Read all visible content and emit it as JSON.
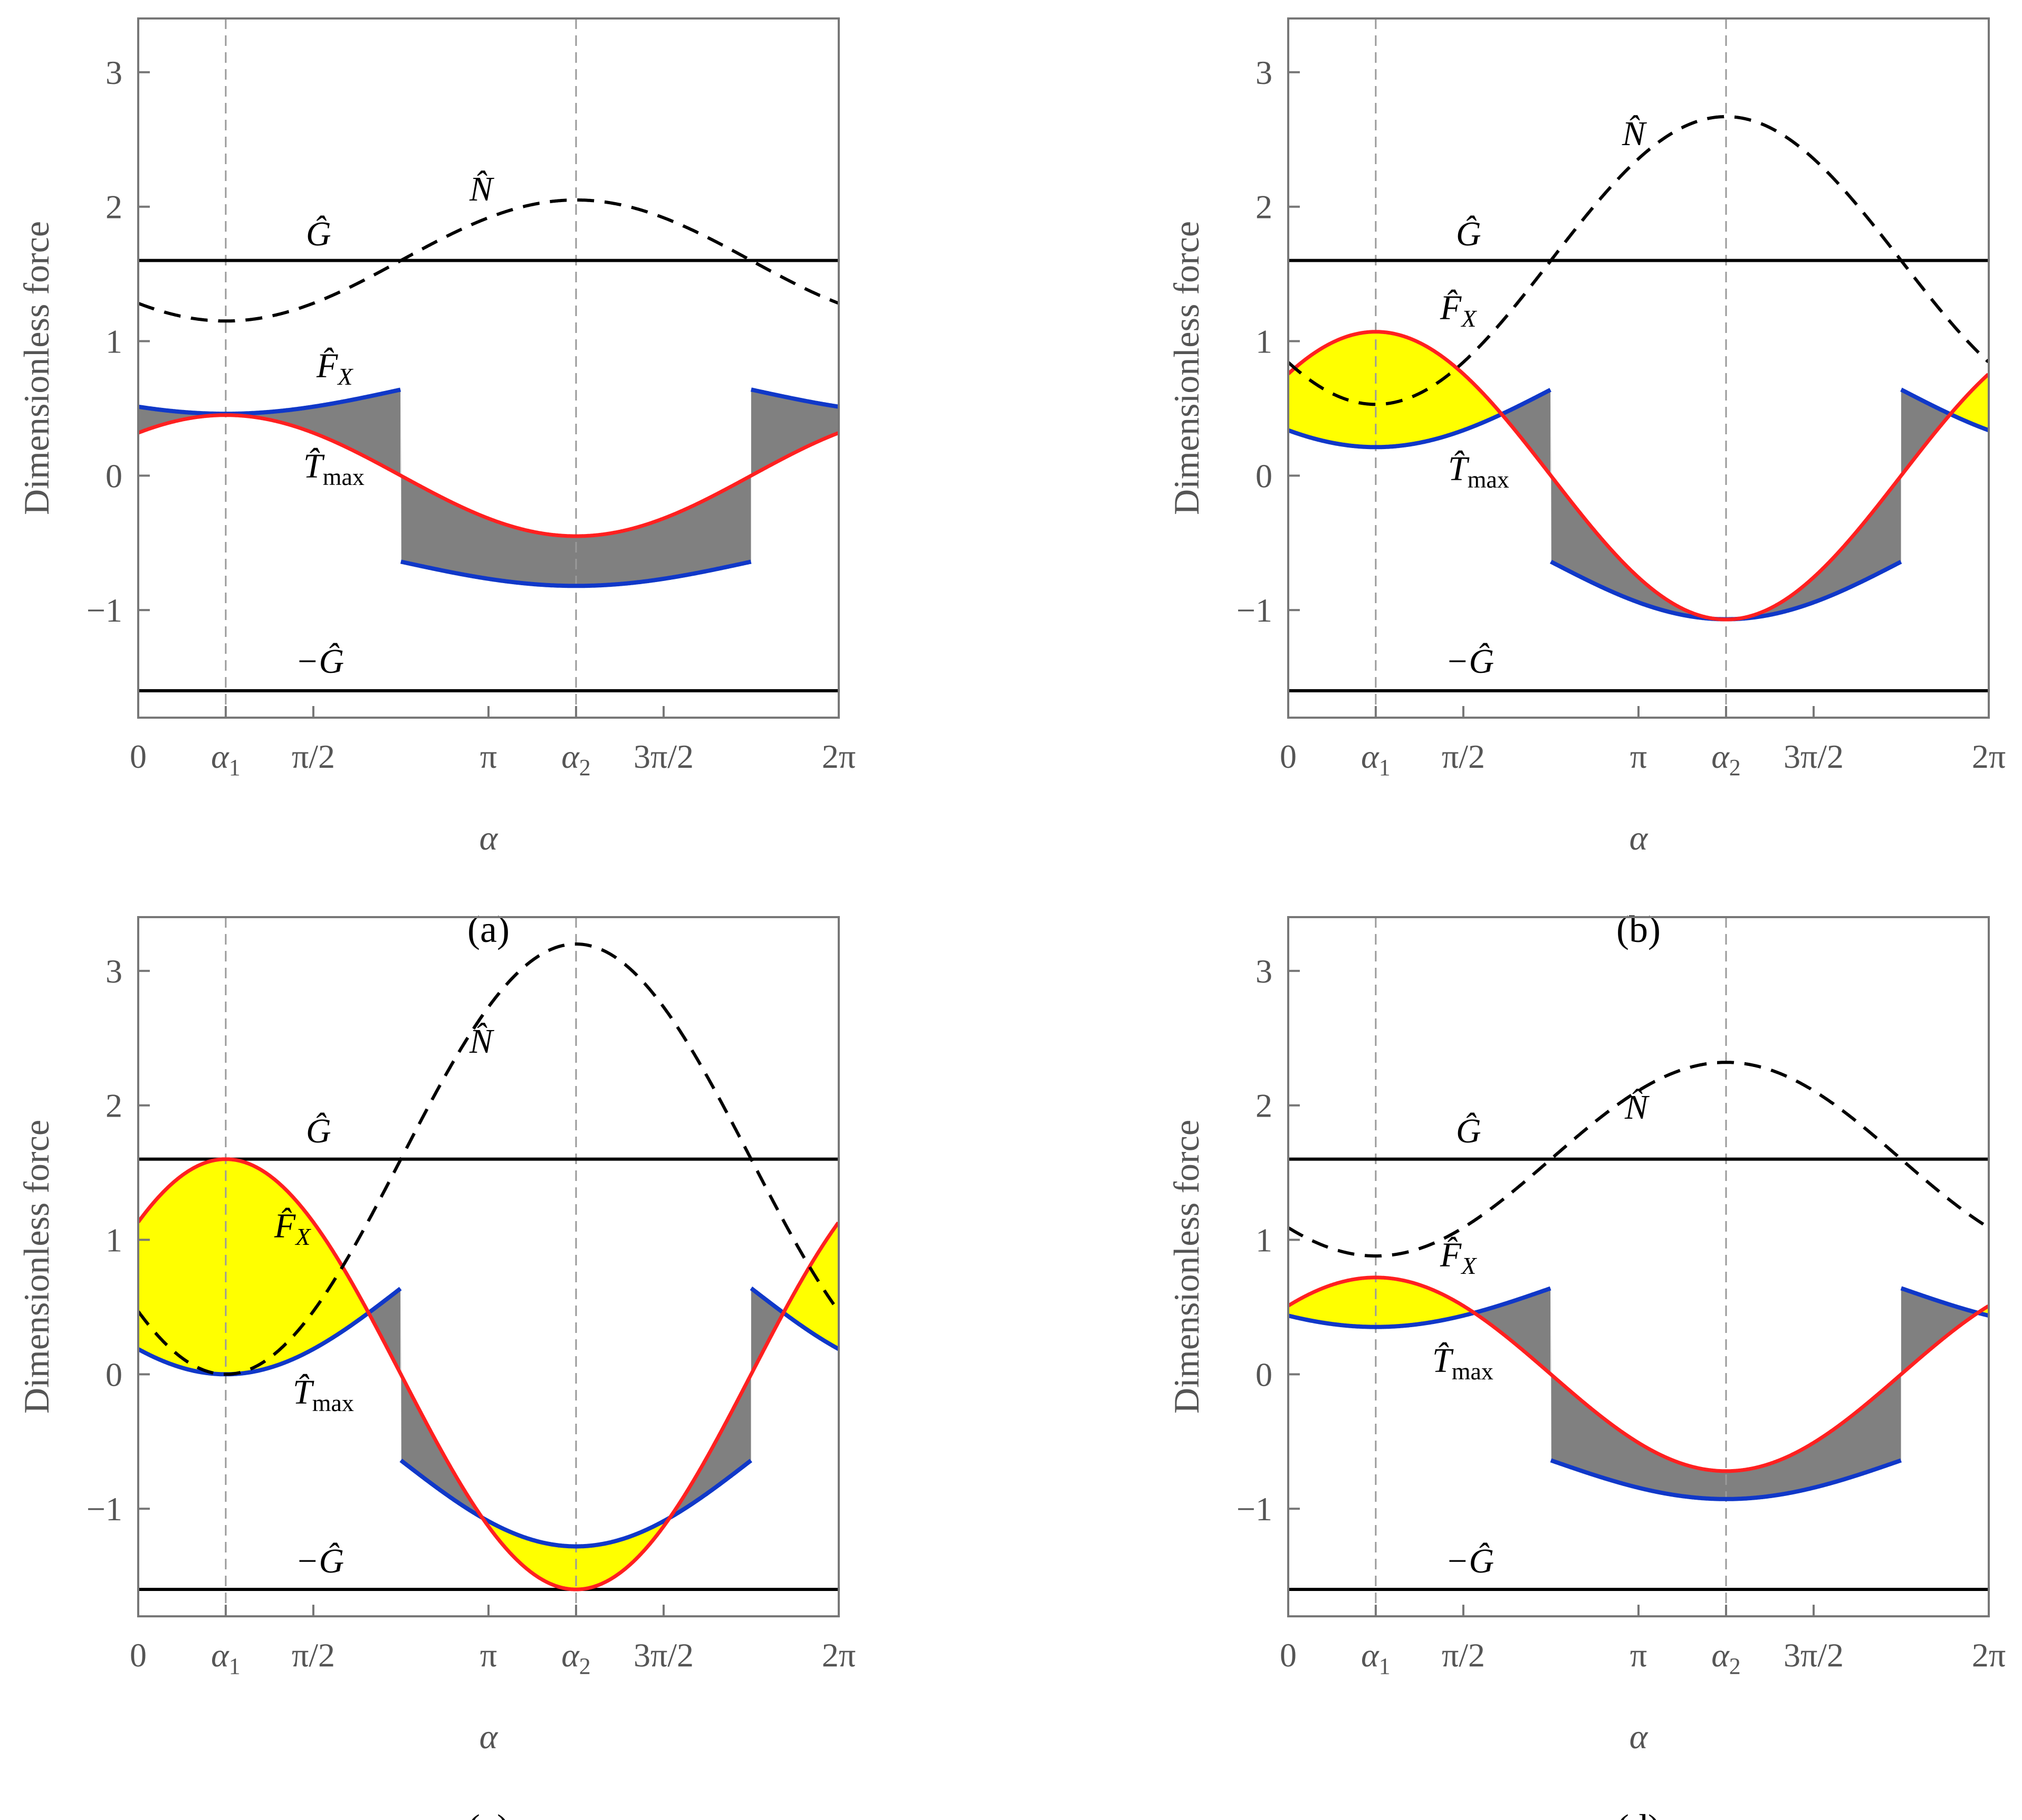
{
  "figure": {
    "panel_captions": [
      "(a)",
      "(b)",
      "(c)",
      "(d)"
    ]
  },
  "colors": {
    "N": "#000000",
    "G": "#000000",
    "FX": "#ff2020",
    "Tmax": "#1038c8",
    "fill_slip": "#808080",
    "fill_lift": "#ffff00",
    "guide": "#9a9a9a",
    "frame": "#777777",
    "tick_text": "#555555"
  },
  "chart_data": [
    {
      "type": "line",
      "panel": "(a)",
      "ylabel": "Dimensionless force",
      "xlabel": "α",
      "xlim": [
        0,
        6.2832
      ],
      "ylim": [
        -1.8,
        3.4
      ],
      "x_ticks": [
        "0",
        "α1",
        "π/2",
        "π",
        "α2",
        "3π/2",
        "2π"
      ],
      "y_ticks": [
        "−1",
        "0",
        "1",
        "2",
        "3"
      ],
      "alpha1": 0.785,
      "alpha2": 3.927,
      "series": [
        {
          "name": "N̂",
          "style": "dashed",
          "mean": 1.6,
          "amp": 0.45
        },
        {
          "name": "Ĝ",
          "value": 1.6
        },
        {
          "name": "−Ĝ",
          "value": -1.6
        },
        {
          "name": "F̂X",
          "amp": 0.45
        },
        {
          "name": "T̂max",
          "mu": 0.4
        }
      ],
      "annotations": [
        "N̂",
        "Ĝ",
        "F̂X",
        "T̂max",
        "−Ĝ"
      ]
    },
    {
      "type": "line",
      "panel": "(b)",
      "ylabel": "Dimensionless force",
      "xlabel": "α",
      "xlim": [
        0,
        6.2832
      ],
      "ylim": [
        -1.8,
        3.4
      ],
      "x_ticks": [
        "0",
        "α1",
        "π/2",
        "π",
        "α2",
        "3π/2",
        "2π"
      ],
      "y_ticks": [
        "−1",
        "0",
        "1",
        "2",
        "3"
      ],
      "alpha1": 0.785,
      "alpha2": 3.927,
      "series": [
        {
          "name": "N̂",
          "style": "dashed",
          "mean": 1.6,
          "amp": 1.07
        },
        {
          "name": "Ĝ",
          "value": 1.6
        },
        {
          "name": "−Ĝ",
          "value": -1.6
        },
        {
          "name": "F̂X",
          "amp": 1.07
        },
        {
          "name": "T̂max",
          "mu": 0.4
        }
      ],
      "annotations": [
        "N̂",
        "Ĝ",
        "F̂X",
        "T̂max",
        "−Ĝ"
      ]
    },
    {
      "type": "line",
      "panel": "(c)",
      "ylabel": "Dimensionless force",
      "xlabel": "α",
      "xlim": [
        0,
        6.2832
      ],
      "ylim": [
        -1.8,
        3.4
      ],
      "x_ticks": [
        "0",
        "α1",
        "π/2",
        "π",
        "α2",
        "3π/2",
        "2π"
      ],
      "y_ticks": [
        "−1",
        "0",
        "1",
        "2",
        "3"
      ],
      "alpha1": 0.785,
      "alpha2": 3.927,
      "series": [
        {
          "name": "N̂",
          "style": "dashed",
          "mean": 1.6,
          "amp": 1.6
        },
        {
          "name": "Ĝ",
          "value": 1.6
        },
        {
          "name": "−Ĝ",
          "value": -1.6
        },
        {
          "name": "F̂X",
          "amp": 1.6
        },
        {
          "name": "T̂max",
          "mu": 0.4
        }
      ],
      "annotations": [
        "N̂",
        "Ĝ",
        "F̂X",
        "T̂max",
        "−Ĝ"
      ]
    },
    {
      "type": "line",
      "panel": "(d)",
      "ylabel": "Dimensionless force",
      "xlabel": "α",
      "xlim": [
        0,
        6.2832
      ],
      "ylim": [
        -1.8,
        3.4
      ],
      "x_ticks": [
        "0",
        "α1",
        "π/2",
        "π",
        "α2",
        "3π/2",
        "2π"
      ],
      "y_ticks": [
        "−1",
        "0",
        "1",
        "2",
        "3"
      ],
      "alpha1": 0.785,
      "alpha2": 3.927,
      "series": [
        {
          "name": "N̂",
          "style": "dashed",
          "mean": 1.6,
          "amp": 0.72
        },
        {
          "name": "Ĝ",
          "value": 1.6
        },
        {
          "name": "−Ĝ",
          "value": -1.6
        },
        {
          "name": "F̂X",
          "amp": 0.72
        },
        {
          "name": "T̂max",
          "mu": 0.4
        }
      ],
      "annotations": [
        "N̂",
        "Ĝ",
        "F̂X",
        "T̂max",
        "−Ĝ"
      ]
    }
  ]
}
